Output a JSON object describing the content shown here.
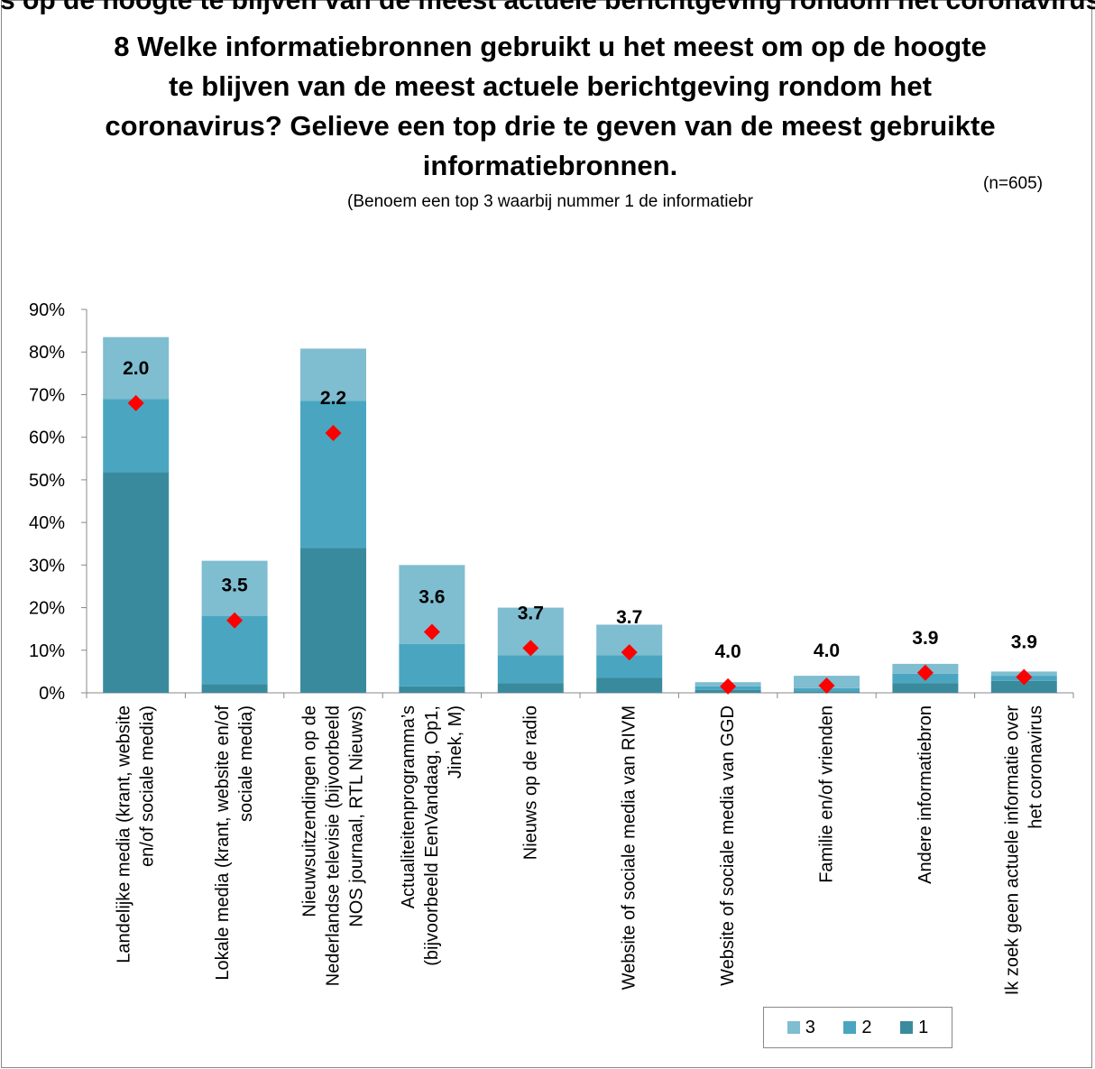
{
  "header": {
    "cut_title": "s op de hoogte te blijven van de meest actuele berichtgeving rondom het coronavirus? Gelieve een top drie te geven van de meest gebruikte informatiebronnen. (",
    "title": "8 Welke informatiebronnen gebruikt u het meest om op de hoogte te blijven van de meest actuele berichtgeving rondom het coronavirus? Gelieve een top drie te geven van de meest gebruikte informatiebronnen.",
    "subtitle": "(Benoem een top 3 waarbij nummer 1 de informatiebr",
    "n_note": "(n=605)"
  },
  "colors": {
    "rank1": "#3a8a9e",
    "rank2": "#4aa6c0",
    "rank3": "#7fbdd0",
    "marker": "#ff0000",
    "axis": "#888888"
  },
  "chart_data": {
    "type": "bar",
    "stacked": true,
    "categories": [
      "Landelijke media (krant, website en/of sociale media)",
      "Lokale media (krant, website en/of sociale media)",
      "Nieuwsuitzendingen op de Nederlandse televisie (bijvoorbeeld NOS journaal, RTL Nieuws)",
      "Actualiteitenprogramma's (bijvoorbeeld EenVandaag, Op1, Jinek, M)",
      "Nieuws op de radio",
      "Website of sociale media van RIVM",
      "Website of sociale media van GGD",
      "Familie en/of vrienden",
      "Andere informatiebron",
      "Ik zoek geen actuele informatie over het coronavirus"
    ],
    "category_lines": [
      [
        "Landelijke media (krant, website",
        "en/of sociale media)"
      ],
      [
        "Lokale media (krant, website en/of",
        "sociale media)"
      ],
      [
        "Nieuwsuitzendingen op de",
        "Nederlandse televisie (bijvoorbeeld",
        "NOS journaal, RTL Nieuws)"
      ],
      [
        "Actualiteitenprogramma’s",
        "(bijvoorbeeld EenVandaag, Op1,",
        "Jinek, M)"
      ],
      [
        "Nieuws op de radio"
      ],
      [
        "Website of sociale media van RIVM"
      ],
      [
        "Website of sociale media van GGD"
      ],
      [
        "Familie en/of vrienden"
      ],
      [
        "Andere informatiebron"
      ],
      [
        "Ik zoek geen actuele informatie over",
        "het coronavirus"
      ]
    ],
    "series": [
      {
        "name": "1",
        "values": [
          51.8,
          2.0,
          34.0,
          1.5,
          2.3,
          3.5,
          0.7,
          0.3,
          2.3,
          2.8
        ]
      },
      {
        "name": "2",
        "values": [
          17.2,
          16.0,
          34.5,
          10.0,
          6.5,
          5.3,
          0.8,
          0.8,
          2.2,
          1.2
        ]
      },
      {
        "name": "3",
        "values": [
          14.5,
          13.0,
          12.3,
          18.5,
          11.2,
          7.2,
          1.0,
          2.9,
          2.3,
          1.0
        ]
      }
    ],
    "average_rank": [
      "2.0",
      "3.5",
      "2.2",
      "3.6",
      "3.7",
      "3.7",
      "4.0",
      "4.0",
      "3.9",
      "3.9"
    ],
    "marker_values": [
      68.0,
      17.0,
      61.0,
      14.3,
      10.5,
      9.5,
      1.5,
      1.7,
      4.7,
      3.7
    ],
    "ylim": [
      0,
      90
    ],
    "yticks": [
      "0%",
      "10%",
      "20%",
      "30%",
      "40%",
      "50%",
      "60%",
      "70%",
      "80%",
      "90%"
    ],
    "legend": [
      "3",
      "2",
      "1"
    ],
    "legend_position": "bottom-right"
  }
}
